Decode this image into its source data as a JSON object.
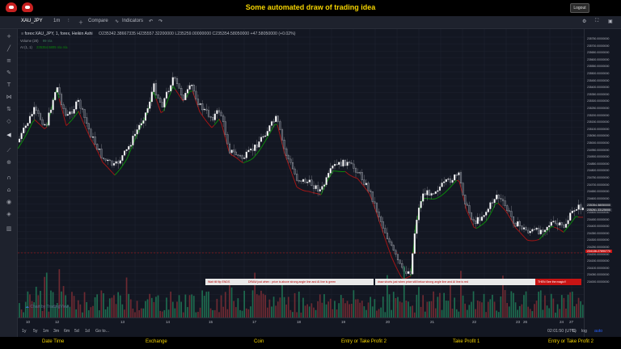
{
  "header": {
    "title": "Some automated draw of trading idea",
    "logout_label": "Logout"
  },
  "toolbar": {
    "symbol": "XAU_JPY",
    "interval": "1m",
    "compare_label": "Compare",
    "indicators_label": "Indicators"
  },
  "legend": {
    "main": "forex:XAU_JPY, 1, forex, Heikin Ashi",
    "ohlc": "O235342.38667335  H235557.32200000  L235259.00000000  C235354.58050000  +47.58050000 (+0.02%)",
    "volume": "Volume (20)",
    "volume_value": "99  n/a",
    "ai": "AI (1, 1)",
    "ai_value": "235354.5805  n/a  n/a"
  },
  "price_scale": {
    "labels": [
      "235750.00000000",
      "235700.00000000",
      "235650.00000000",
      "235600.00000000",
      "235550.00000000",
      "235500.00000000",
      "235450.00000000",
      "235400.00000000",
      "235350.00000000",
      "235300.00000000",
      "235250.00000000",
      "235200.00000000",
      "235150.00000000",
      "235100.00000000",
      "235050.00000000",
      "235000.00000000",
      "234950.00000000",
      "234900.00000000",
      "234850.00000000",
      "234800.00000000",
      "234750.00000000",
      "234700.00000000",
      "234650.00000000",
      "234600.00000000",
      "234550.00000000",
      "234500.00000000",
      "234450.00000000",
      "234400.00000000",
      "234350.00000000",
      "234300.00000000",
      "234250.00000000",
      "234200.00000000",
      "234150.00000000",
      "234100.00000000",
      "234050.00000000",
      "234000.00000000"
    ],
    "current_price": "235354.58050000",
    "current_price_2": "235261.33125000",
    "marker_price": "234136.27890770"
  },
  "time_axis": {
    "labels": [
      "10",
      "12",
      "13",
      "14",
      "15",
      "17",
      "18",
      "19",
      "20",
      "21",
      "22",
      "23",
      "24",
      "26",
      "27"
    ]
  },
  "range_bar": {
    "items": [
      "1y",
      "5y",
      "1m",
      "3m",
      "6m",
      "5d",
      "1d",
      "Go to..."
    ],
    "time": "02:01:50 (UTC)",
    "pct": "%",
    "log": "log",
    "auto": "auto"
  },
  "annotations": {
    "wait": "Wait till flip ENDS",
    "long": "DRAW just when : price is above strong angle line and AI line is green",
    "short": "draw shorts just when price still below strong angle line and AI line is red",
    "then": "THEN See the magic!!"
  },
  "watermark": "Chart by TradingView",
  "footer": {
    "items": [
      "Date Time",
      "Exchange",
      "Coin",
      "Entry or Take Profit 2",
      "Take Profit 1",
      "Entry or Take Profit 2"
    ]
  },
  "colors": {
    "up": "#ffffff",
    "down": "#3a3f4c",
    "ai_green": "#0b8a0b",
    "ai_red": "#a31515",
    "vol_up": "#1e6b4f",
    "vol_down": "#6e2a32",
    "title_yellow": "#f5d400"
  },
  "icons": [
    "crosshair-icon",
    "trend-line-icon",
    "fib-icon",
    "brush-icon",
    "text-icon",
    "pattern-icon",
    "prediction-icon",
    "shape-icon",
    "back-arrow-icon",
    "ruler-icon",
    "zoom-icon",
    "magnet-icon",
    "lock-icon",
    "eye-icon",
    "trash-icon"
  ]
}
